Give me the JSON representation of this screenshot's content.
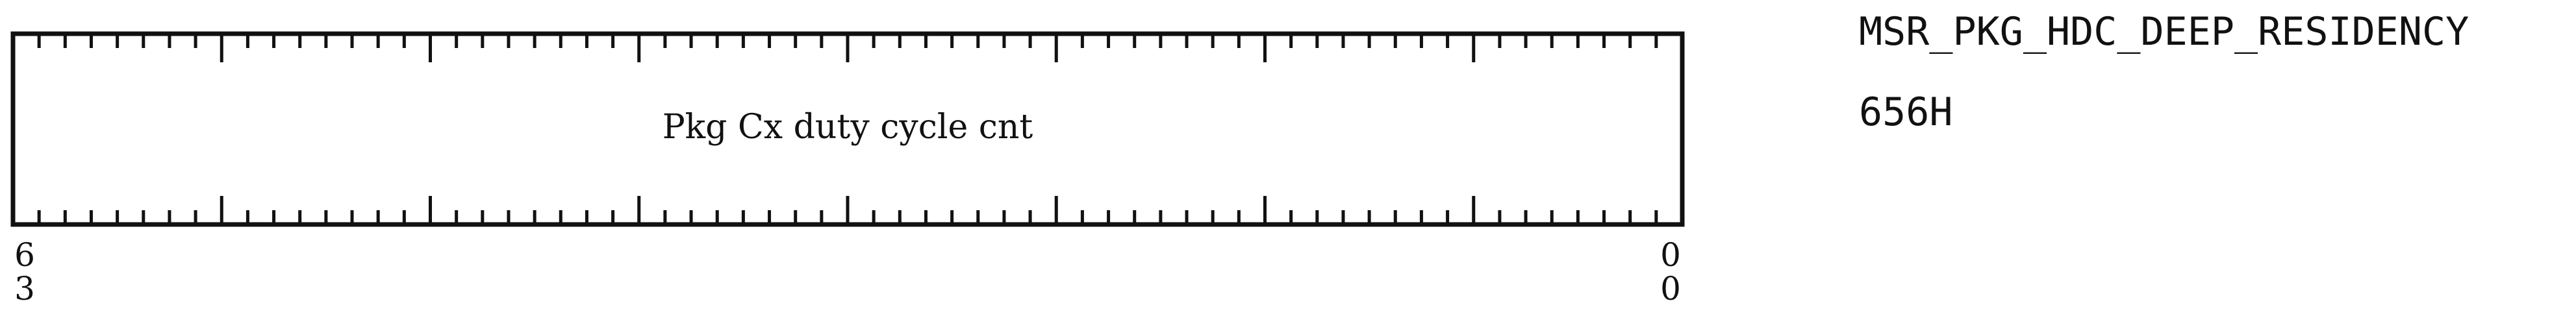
{
  "register": {
    "field_label": "Pkg Cx duty cycle cnt",
    "msb_digits": [
      "6",
      "3"
    ],
    "lsb_digits": [
      "0",
      "0"
    ],
    "bit_count": 64
  },
  "msr": {
    "name": "MSR_PKG_HDC_DEEP_RESIDENCY",
    "address": "656H"
  },
  "colors": {
    "line": "#111111",
    "background": "#ffffff"
  }
}
